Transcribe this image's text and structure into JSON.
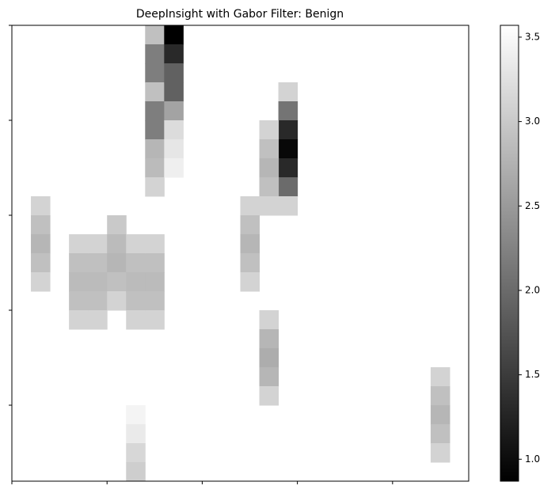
{
  "chart_data": {
    "type": "heatmap",
    "title": "DeepInsight with Gabor Filter: Benign",
    "colormap": "gray",
    "x": [
      7,
      7,
      7,
      7,
      7,
      7,
      7,
      7,
      7,
      8,
      8,
      8,
      8,
      8,
      8,
      8,
      8,
      14,
      14,
      14,
      14,
      14,
      14,
      14,
      13,
      13,
      13,
      13,
      13,
      12,
      12,
      12,
      12,
      12,
      1,
      1,
      1,
      1,
      1,
      3,
      3,
      3,
      3,
      3,
      4,
      4,
      4,
      4,
      4,
      5,
      5,
      5,
      5,
      5,
      6,
      6,
      6,
      6,
      6,
      7,
      7,
      7,
      7,
      7,
      13,
      13,
      13,
      13,
      13,
      22,
      22,
      22,
      22,
      22,
      6,
      6,
      6,
      6
    ],
    "y": [
      0,
      1,
      2,
      3,
      4,
      5,
      6,
      7,
      8,
      0,
      1,
      2,
      3,
      4,
      5,
      6,
      7,
      3,
      4,
      5,
      6,
      7,
      8,
      9,
      5,
      6,
      7,
      8,
      9,
      9,
      10,
      11,
      12,
      13,
      9,
      10,
      11,
      12,
      13,
      11,
      12,
      13,
      14,
      15,
      11,
      12,
      13,
      14,
      15,
      10,
      11,
      12,
      13,
      14,
      11,
      12,
      13,
      14,
      15,
      11,
      12,
      13,
      14,
      15,
      15,
      16,
      17,
      18,
      19,
      18,
      19,
      20,
      21,
      22,
      20,
      21,
      22,
      23
    ],
    "values": [
      2.9,
      2.2,
      2.2,
      2.9,
      2.2,
      2.2,
      2.8,
      2.85,
      3.1,
      0.87,
      1.3,
      1.9,
      1.9,
      2.6,
      3.2,
      3.3,
      3.4,
      3.1,
      2.1,
      1.3,
      0.95,
      1.3,
      2.0,
      3.1,
      3.1,
      2.9,
      2.8,
      2.9,
      3.1,
      3.1,
      2.9,
      2.8,
      2.9,
      3.1,
      3.1,
      2.9,
      2.8,
      2.9,
      3.1,
      3.1,
      2.9,
      2.85,
      2.9,
      3.1,
      3.1,
      2.9,
      2.85,
      2.9,
      3.1,
      3.0,
      2.85,
      2.8,
      2.9,
      3.1,
      3.1,
      2.9,
      2.85,
      2.9,
      3.1,
      3.1,
      2.9,
      2.85,
      2.9,
      3.1,
      3.1,
      2.8,
      2.7,
      2.8,
      3.1,
      3.1,
      2.9,
      2.8,
      2.9,
      3.1,
      3.45,
      3.35,
      3.15,
      3.05
    ],
    "xlim": [
      0,
      24
    ],
    "ylim": [
      0,
      24
    ],
    "xticks": [
      0,
      5,
      10,
      15,
      20
    ],
    "yticks": [
      0,
      5,
      10,
      15,
      20
    ],
    "clim": [
      0.87,
      3.57
    ],
    "cticks": [
      {
        "value": 1,
        "label": "1.0"
      },
      1.5,
      {
        "value": 2,
        "label": "2.0"
      },
      2.5,
      {
        "value": 3,
        "label": "3.0"
      },
      3.5
    ]
  }
}
